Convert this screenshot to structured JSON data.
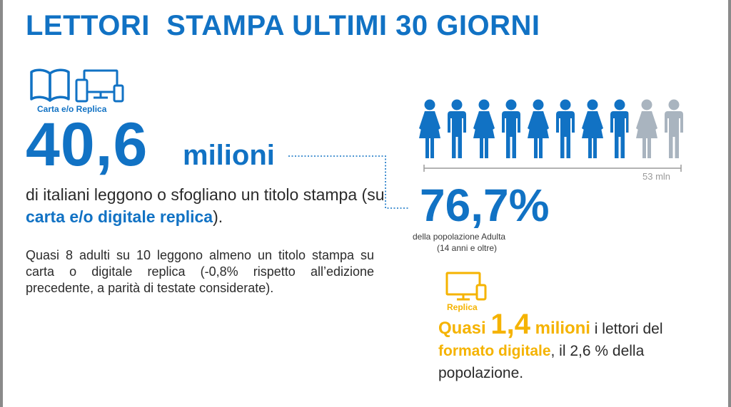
{
  "header": {
    "title": "LETTORI  STAMPA ULTIMI 30 GIORNI"
  },
  "carta": {
    "label": "Carta e/o Replica",
    "icons": [
      "open-book-icon",
      "devices-icon"
    ],
    "number": "40,6",
    "unit": "milioni",
    "desc_part1": "di italiani leggono o sfogliano un titolo stampa (su ",
    "desc_highlight": "carta e/o digitale replica",
    "desc_part2": ")."
  },
  "paragraph": "Quasi 8 adulti su 10 leggono almeno un titolo stampa su carta o digitale replica (-0,8% rispetto all’edizione precedente, a parità di testate considerate).",
  "people_chart": {
    "total_figures": 10,
    "filled_fraction": 0.767,
    "scale_label": "53 mln",
    "filled_color": "#1172c4",
    "empty_color": "#a9b4bf"
  },
  "percent": {
    "value": "76,7%",
    "sub1": "della popolazione Adulta",
    "sub2": "(14 anni e oltre)"
  },
  "replica": {
    "label": "Replica",
    "icon": "devices-icon",
    "quasi": "Quasi ",
    "number": "1,4",
    "unit": " milioni",
    "text1": " i lettori del ",
    "formato": "formato digitale",
    "text2": ", il 2,6 % della popolazione."
  },
  "colors": {
    "blue": "#1172c4",
    "yellow": "#f5b300",
    "text": "#2b2b2b"
  }
}
